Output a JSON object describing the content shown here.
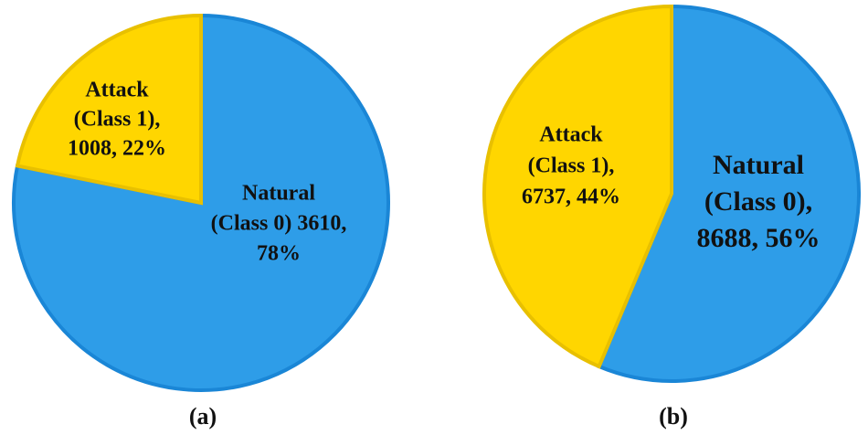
{
  "chart_data": [
    {
      "type": "pie",
      "caption": "(a)",
      "categories": [
        "Natural (Class 0)",
        "Attack (Class 1)"
      ],
      "values": [
        3610,
        1008
      ],
      "value_labels": [
        [
          "Natural",
          "(Class 0) 3610,",
          "78%"
        ],
        [
          "Attack",
          "(Class 1),",
          "1008,  22%"
        ]
      ],
      "colors": [
        "#2e9de8",
        "#ffd600"
      ]
    },
    {
      "type": "pie",
      "caption": "(b)",
      "categories": [
        "Natural (Class 0)",
        "Attack (Class 1)"
      ],
      "values": [
        8688,
        6737
      ],
      "value_labels": [
        [
          "Natural",
          "(Class 0),",
          "8688, 56%"
        ],
        [
          "Attack",
          "(Class 1),",
          "6737, 44%"
        ]
      ],
      "colors": [
        "#2e9de8",
        "#ffd600"
      ]
    }
  ]
}
